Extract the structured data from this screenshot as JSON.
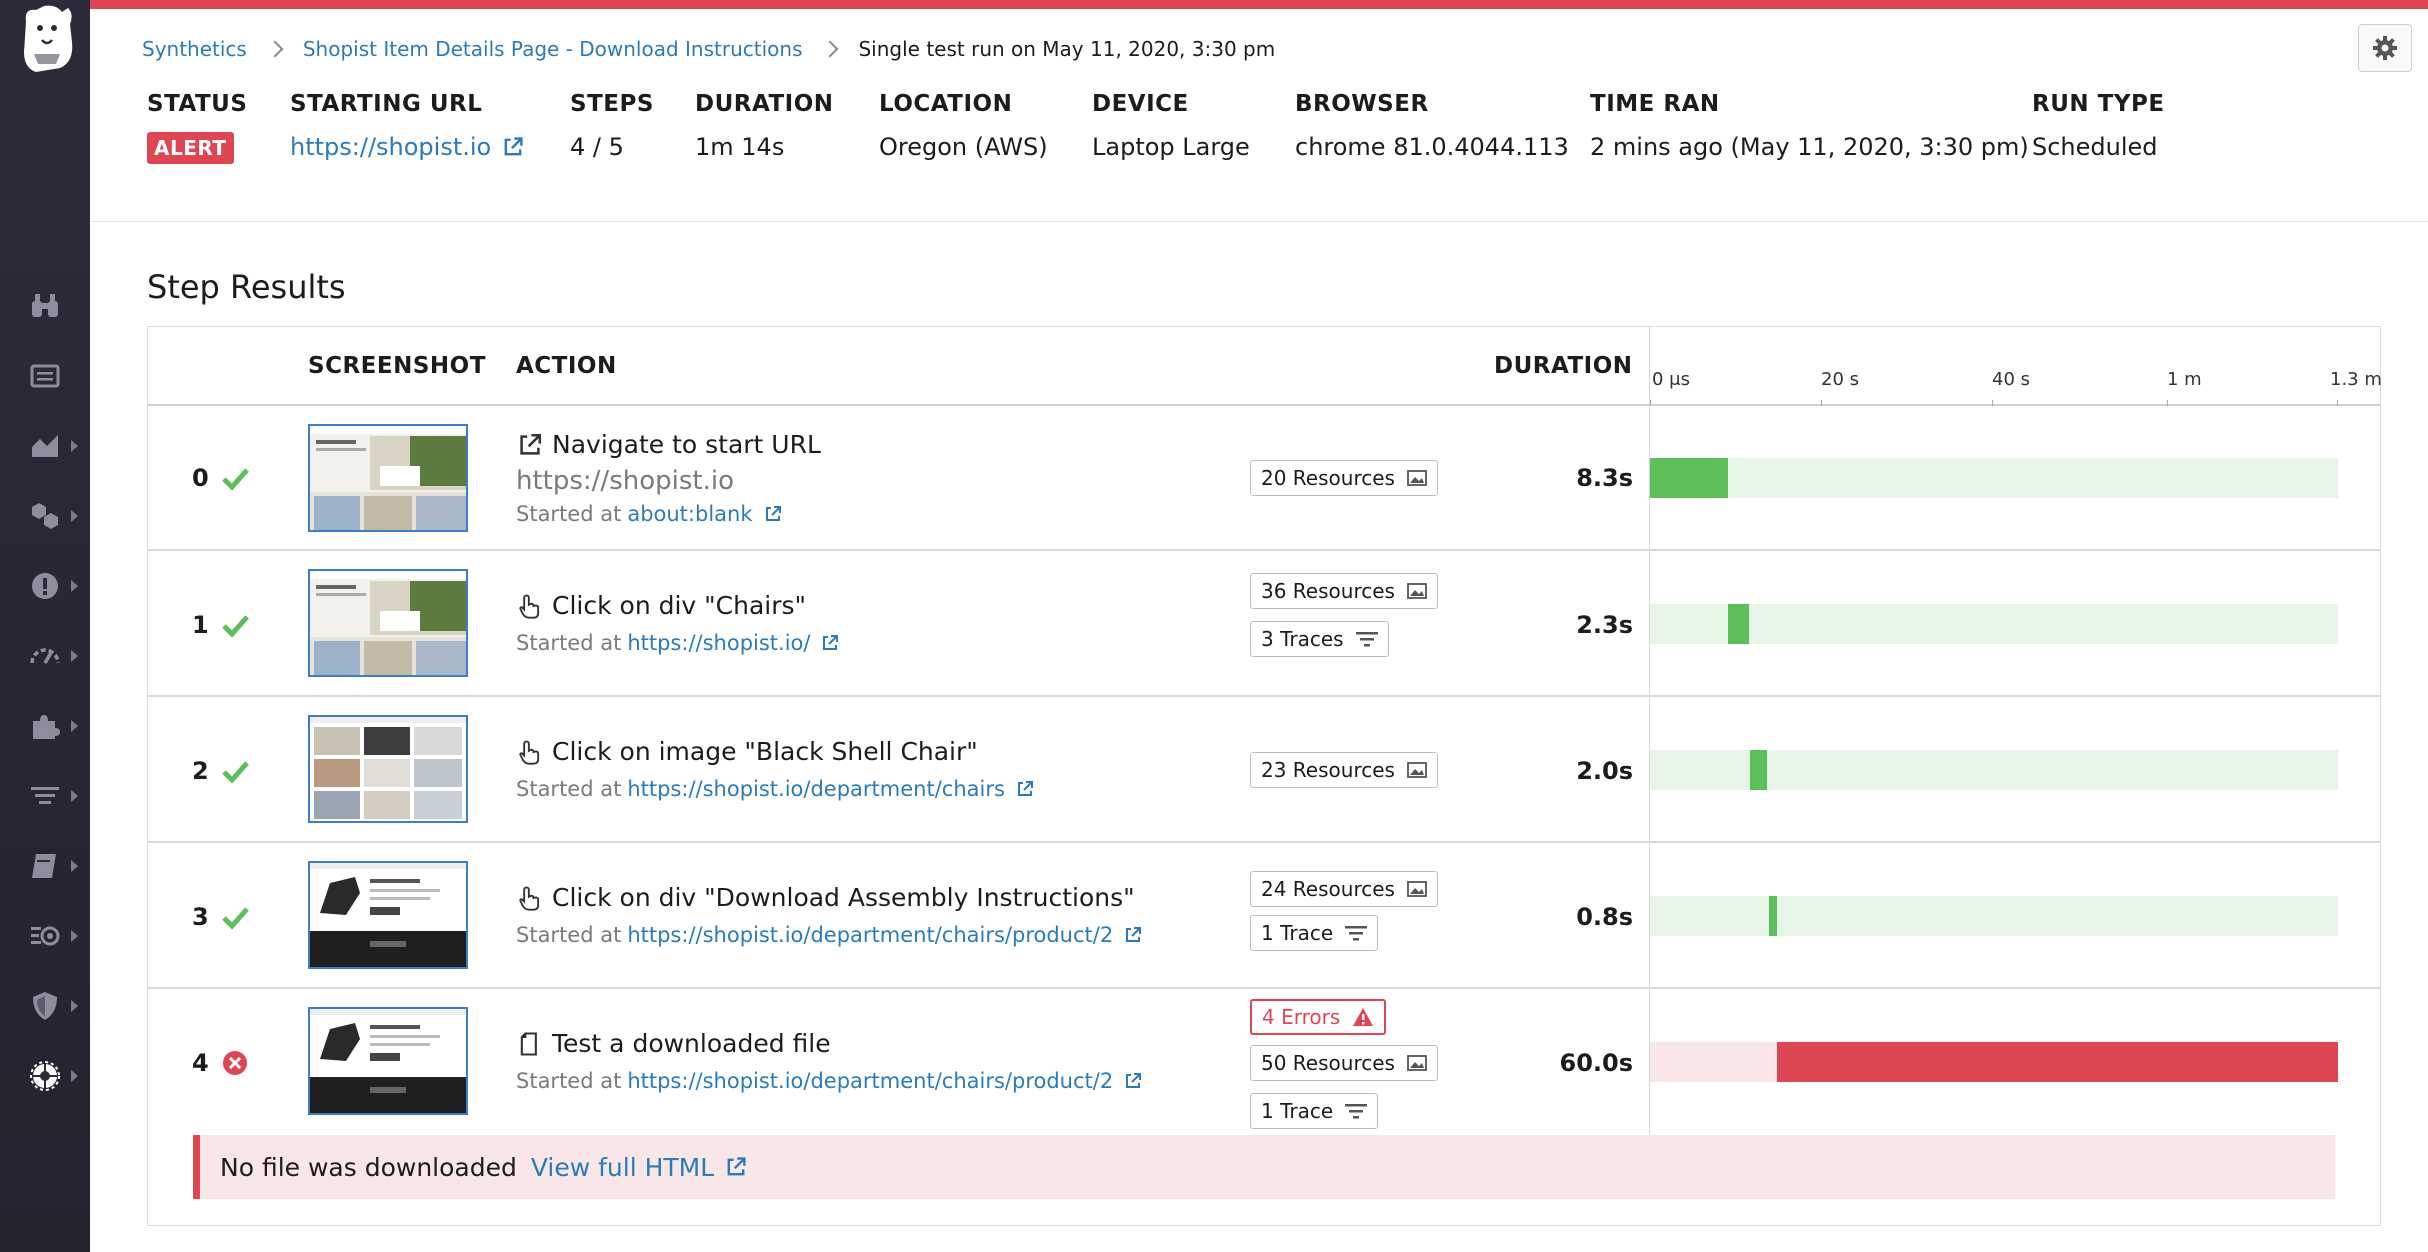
{
  "breadcrumb": {
    "items": [
      "Synthetics",
      "Shopist Item Details Page - Download Instructions"
    ],
    "current": "Single test run on May 11, 2020, 3:30 pm"
  },
  "summary": {
    "status": {
      "label": "STATUS",
      "value": "ALERT"
    },
    "starting_url": {
      "label": "STARTING URL",
      "value": "https://shopist.io"
    },
    "steps": {
      "label": "STEPS",
      "value": "4 / 5"
    },
    "duration": {
      "label": "DURATION",
      "value": "1m 14s"
    },
    "location": {
      "label": "LOCATION",
      "value": "Oregon (AWS)"
    },
    "device": {
      "label": "DEVICE",
      "value": "Laptop Large"
    },
    "browser": {
      "label": "BROWSER",
      "value": "chrome 81.0.4044.113"
    },
    "time_ran": {
      "label": "TIME RAN",
      "value": "2 mins ago (May 11, 2020, 3:30 pm)"
    },
    "run_type": {
      "label": "RUN TYPE",
      "value": "Scheduled"
    }
  },
  "section_title": "Step Results",
  "table": {
    "headers": {
      "screenshot": "SCREENSHOT",
      "action": "ACTION",
      "duration": "DURATION"
    },
    "timeline_ticks": [
      "0 μs",
      "20 s",
      "40 s",
      "1 m",
      "1.3 m"
    ],
    "steps": [
      {
        "num": "0",
        "status": "passed",
        "icon": "external-link-icon",
        "title": "Navigate to start URL",
        "subtitle": "https://shopist.io",
        "started_prefix": "Started at",
        "started_url": "about:blank",
        "resources": "20 Resources",
        "traces": "",
        "errors": "",
        "duration": "8.3s",
        "bar_start": 0.0,
        "bar_end": 0.113
      },
      {
        "num": "1",
        "status": "passed",
        "icon": "click-hand-icon",
        "title": "Click on div \"Chairs\"",
        "subtitle": "",
        "started_prefix": "Started at",
        "started_url": "https://shopist.io/",
        "resources": "36 Resources",
        "traces": "3 Traces",
        "errors": "",
        "duration": "2.3s",
        "bar_start": 0.113,
        "bar_end": 0.144
      },
      {
        "num": "2",
        "status": "passed",
        "icon": "click-hand-icon",
        "title": "Click on image \"Black Shell Chair\"",
        "subtitle": "",
        "started_prefix": "Started at",
        "started_url": "https://shopist.io/department/chairs",
        "resources": "23 Resources",
        "traces": "",
        "errors": "",
        "duration": "2.0s",
        "bar_start": 0.146,
        "bar_end": 0.171
      },
      {
        "num": "3",
        "status": "passed",
        "icon": "click-hand-icon",
        "title": "Click on div \"Download Assembly Instructions\"",
        "subtitle": "",
        "started_prefix": "Started at",
        "started_url": "https://shopist.io/department/chairs/product/2",
        "resources": "24 Resources",
        "traces": "1 Trace",
        "errors": "",
        "duration": "0.8s",
        "bar_start": 0.173,
        "bar_end": 0.184
      },
      {
        "num": "4",
        "status": "failed",
        "icon": "file-icon",
        "title": "Test a downloaded file",
        "subtitle": "",
        "started_prefix": "Started at",
        "started_url": "https://shopist.io/department/chairs/product/2",
        "resources": "50 Resources",
        "traces": "1 Trace",
        "errors": "4 Errors",
        "duration": "60.0s",
        "bar_start": 0.184,
        "bar_end": 1.0
      }
    ]
  },
  "error_banner": {
    "message": "No file was downloaded",
    "link": "View full HTML"
  },
  "colors": {
    "alert": "#de4654",
    "success": "#5cbf5c",
    "success_track": "#e6f5e6",
    "error_track": "#f9e6e6",
    "link": "#2b7bb9"
  }
}
